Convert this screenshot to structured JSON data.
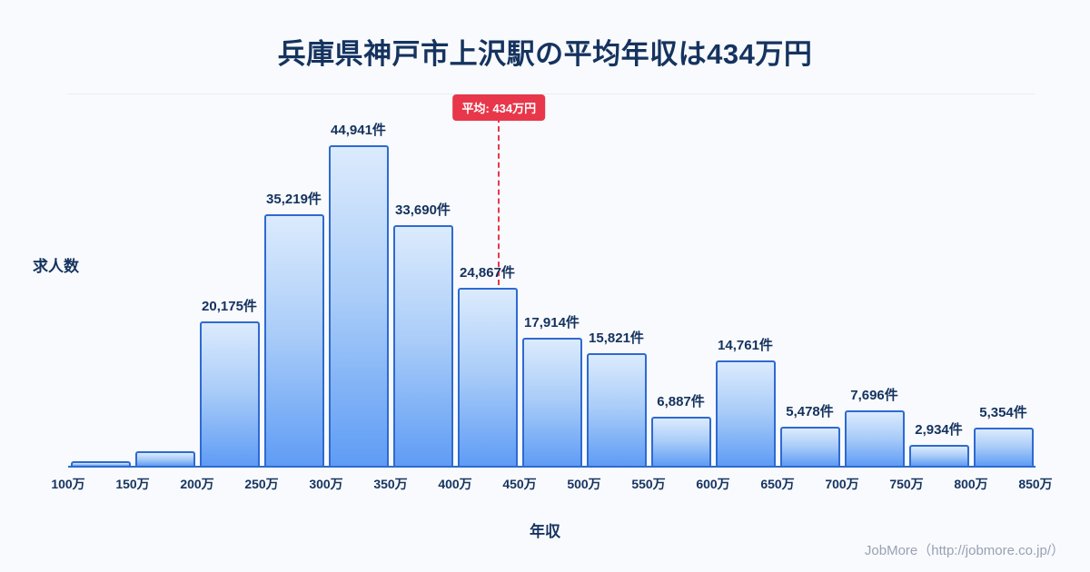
{
  "title": "兵庫県神戸市上沢駅の平均年収は434万円",
  "y_axis_label": "求人数",
  "x_axis_label": "年収",
  "footer": "JobMore（http://jobmore.co.jp/）",
  "average": {
    "badge_label": "平均: 434万円",
    "value": 434
  },
  "colors": {
    "background": "#f8fafd",
    "title_text": "#15335f",
    "bar_fill_top": "#dcebfd",
    "bar_fill_bottom": "#5f9cf5",
    "bar_border": "#2e6ad1",
    "average_line": "#e8374a",
    "badge_background": "#e8374a",
    "badge_text": "#ffffff",
    "footer_text": "#99a1b3"
  },
  "chart_data": {
    "type": "bar",
    "title": "兵庫県神戸市上沢駅の平均年収は434万円",
    "xlabel": "年収",
    "ylabel": "求人数",
    "unit": "件",
    "grid": false,
    "legend": false,
    "x_tick_labels": [
      "100万",
      "150万",
      "200万",
      "250万",
      "300万",
      "350万",
      "400万",
      "450万",
      "500万",
      "550万",
      "600万",
      "650万",
      "700万",
      "750万",
      "800万",
      "850万"
    ],
    "xlim": [
      100,
      850
    ],
    "ylim": [
      0,
      52000
    ],
    "categories": [
      "100万-150万",
      "150万-200万",
      "200万-250万",
      "250万-300万",
      "300万-350万",
      "350万-400万",
      "400万-450万",
      "450万-500万",
      "500万-550万",
      "550万-600万",
      "600万-650万",
      "650万-700万",
      "700万-750万",
      "750万-800万",
      "800万-850万"
    ],
    "values": [
      640,
      2050,
      20175,
      35219,
      44941,
      33690,
      24867,
      17914,
      15821,
      6887,
      14761,
      5478,
      7696,
      2934,
      5354
    ],
    "bar_labels": [
      "",
      "",
      "20,175件",
      "35,219件",
      "44,941件",
      "33,690件",
      "24,867件",
      "17,914件",
      "15,821件",
      "6,887件",
      "14,761件",
      "5,478件",
      "7,696件",
      "2,934件",
      "5,354件"
    ],
    "average_line": {
      "x": 434,
      "label": "平均: 434万円"
    }
  }
}
